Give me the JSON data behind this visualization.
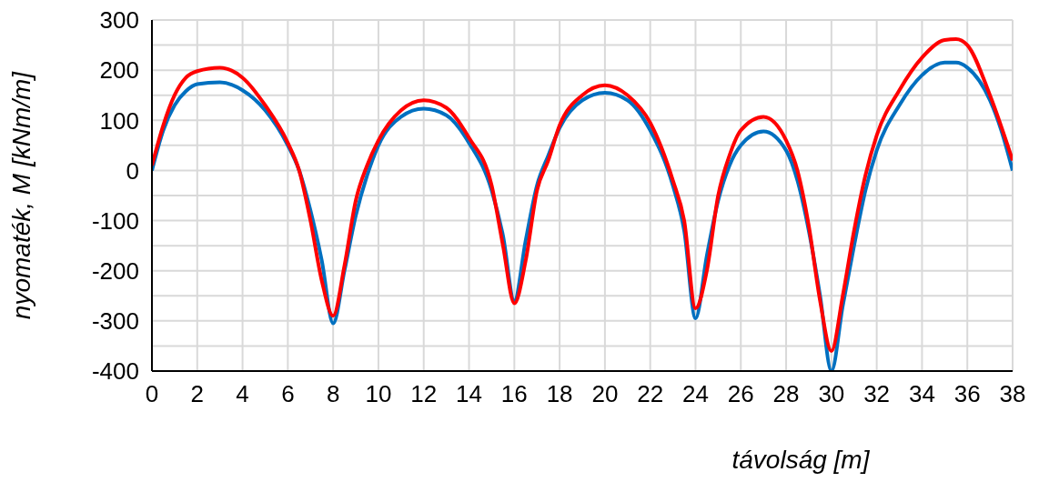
{
  "chart_data": {
    "type": "line",
    "xlabel": "távolság [m]",
    "ylabel": "nyomaték, M [kNm/m]",
    "xlim": [
      0,
      38
    ],
    "xticks": [
      0,
      2,
      4,
      6,
      8,
      10,
      12,
      14,
      16,
      18,
      20,
      22,
      24,
      26,
      28,
      30,
      32,
      34,
      36,
      38
    ],
    "ylim": [
      -400,
      300
    ],
    "yticks": [
      -400,
      {
        "value": -350,
        "label": null
      },
      -300,
      {
        "value": -250,
        "label": null
      },
      -200,
      {
        "value": -150,
        "label": null
      },
      -100,
      {
        "value": -50,
        "label": null
      },
      0,
      {
        "value": 50,
        "label": null
      },
      100,
      {
        "value": 150,
        "label": null
      },
      200,
      {
        "value": 250,
        "label": null
      },
      300
    ],
    "grid": true,
    "marker": "none",
    "line_style": "solid",
    "series": [
      {
        "color": "#0070c0",
        "x": [
          0,
          0.5,
          1,
          1.5,
          2,
          3,
          4,
          5,
          6,
          6.5,
          7,
          7.5,
          8,
          8.5,
          9,
          9.5,
          10,
          11,
          12,
          13,
          14,
          15,
          15.5,
          16,
          16.5,
          17,
          17.5,
          18,
          19,
          20,
          21,
          22,
          23,
          23.5,
          24,
          24.5,
          25,
          25.5,
          26,
          27,
          28,
          28.5,
          29,
          29.5,
          30,
          30.5,
          31,
          31.5,
          32,
          33,
          34,
          35,
          35.5,
          36,
          37,
          37.5,
          38
        ],
        "values": [
          0,
          80,
          130,
          158,
          172,
          176,
          160,
          120,
          50,
          0,
          -80,
          -180,
          -305,
          -200,
          -90,
          -10,
          50,
          107,
          123,
          110,
          55,
          -40,
          -130,
          -260,
          -140,
          -30,
          30,
          85,
          140,
          155,
          140,
          80,
          -30,
          -120,
          -295,
          -170,
          -60,
          10,
          50,
          78,
          40,
          -20,
          -120,
          -250,
          -400,
          -270,
          -150,
          -40,
          40,
          130,
          190,
          215,
          215,
          205,
          140,
          80,
          0
        ]
      },
      {
        "color": "#ff0000",
        "x": [
          0,
          0.5,
          1,
          1.5,
          2,
          3,
          4,
          5,
          6,
          6.5,
          7,
          7.5,
          8,
          8.5,
          9,
          9.5,
          10,
          11,
          12,
          13,
          14,
          15,
          15.5,
          16,
          16.5,
          17,
          17.5,
          18,
          19,
          20,
          21,
          22,
          23,
          23.5,
          24,
          24.5,
          25,
          25.5,
          26,
          27,
          28,
          28.5,
          29,
          29.5,
          30,
          30.5,
          31,
          31.5,
          32,
          33,
          34,
          35,
          35.5,
          36,
          37,
          38
        ],
        "values": [
          10,
          90,
          150,
          185,
          198,
          205,
          185,
          130,
          55,
          0,
          -100,
          -220,
          -290,
          -190,
          -60,
          10,
          60,
          120,
          140,
          125,
          65,
          -30,
          -150,
          -265,
          -180,
          -40,
          20,
          90,
          150,
          170,
          150,
          95,
          -20,
          -100,
          -275,
          -200,
          -50,
          30,
          80,
          107,
          60,
          0,
          -110,
          -260,
          -360,
          -250,
          -120,
          -10,
          70,
          160,
          225,
          260,
          262,
          250,
          150,
          20
        ]
      }
    ]
  }
}
